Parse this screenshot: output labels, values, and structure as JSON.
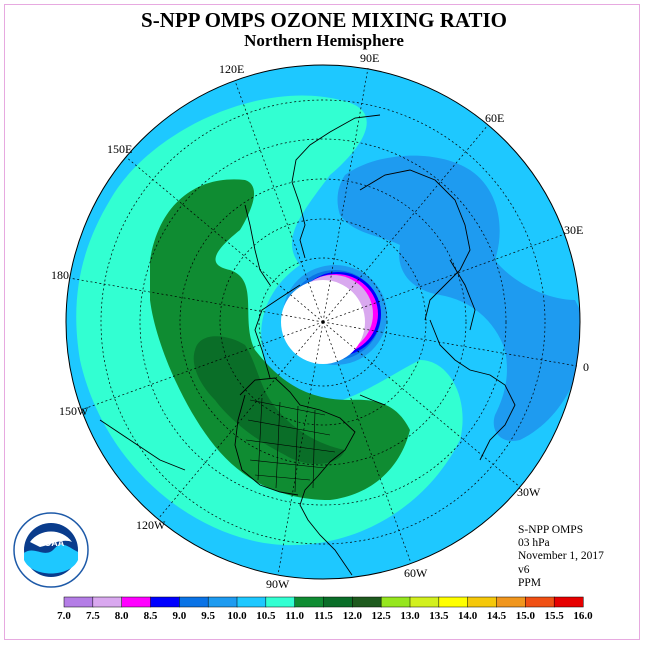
{
  "title": "S-NPP OMPS OZONE MIXING RATIO",
  "subtitle": "Northern Hemisphere",
  "longitude_labels": [
    "90E",
    "60E",
    "30E",
    "0",
    "30W",
    "60W",
    "90W",
    "120W",
    "150W",
    "180",
    "150E",
    "120E"
  ],
  "info": {
    "instrument": "S-NPP OMPS",
    "pressure": "03 hPa",
    "date": "November 1, 2017",
    "version": "v6",
    "units": "PPM"
  },
  "colorbar": {
    "ticks": [
      "7.0",
      "7.5",
      "8.0",
      "8.5",
      "9.0",
      "9.5",
      "10.0",
      "10.5",
      "11.0",
      "11.5",
      "12.0",
      "12.5",
      "13.0",
      "13.5",
      "14.0",
      "14.5",
      "15.0",
      "15.5",
      "16.0"
    ],
    "colors": [
      "#b47de6",
      "#d9a8ef",
      "#ff00ff",
      "#0000ff",
      "#0a73e6",
      "#1e9bf0",
      "#1ec8ff",
      "#32ffd2",
      "#0f8c32",
      "#0a6e28",
      "#1e5a1e",
      "#96e61e",
      "#d2f01e",
      "#ffff00",
      "#f5c80a",
      "#f0961e",
      "#f05014",
      "#e60000",
      "#78503c"
    ]
  },
  "logo": {
    "text": "NOAA"
  }
}
